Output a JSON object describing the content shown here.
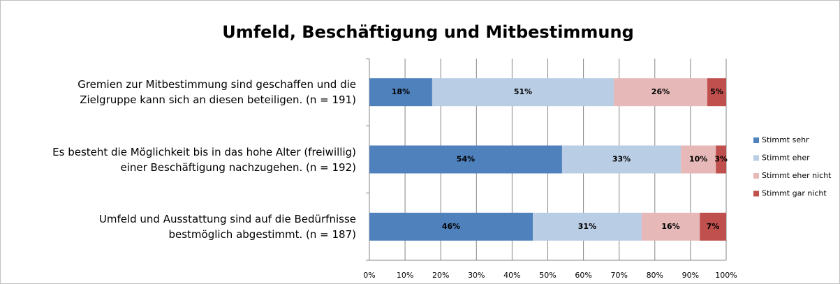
{
  "chart_data": {
    "type": "stacked-bar-horizontal",
    "title": "Umfeld, Beschäftigung und Mitbestimmung",
    "categories": [
      "Gremien zur Mitbestimmung sind geschaffen und die\nZielgruppe kann sich an diesen beteiligen. (n = 191)",
      "Es besteht die Möglichkeit bis in das hohe Alter (freiwillig)\neiner Beschäftigung nachzugehen. (n = 192)",
      "Umfeld und Ausstattung sind auf die Bedürfnisse\nbestmöglich abgestimmt. (n = 187)"
    ],
    "series": [
      {
        "name": "Stimmt sehr",
        "color": "#4f81bd",
        "values": [
          17.6,
          54.0,
          45.8
        ],
        "value_labels": [
          "18%",
          "54%",
          "46%"
        ]
      },
      {
        "name": "Stimmt eher",
        "color": "#b9cde5",
        "values": [
          50.9,
          33.3,
          30.5
        ],
        "value_labels": [
          "51%",
          "33%",
          "31%"
        ]
      },
      {
        "name": "Stimmt eher nicht",
        "color": "#e6b9b8",
        "values": [
          26.2,
          9.8,
          16.3
        ],
        "value_labels": [
          "26%",
          "10%",
          "16%"
        ]
      },
      {
        "name": "Stimmt gar nicht",
        "color": "#c0504d",
        "values": [
          5.3,
          2.9,
          7.4
        ],
        "value_labels": [
          "5%",
          "3%",
          "7%"
        ]
      }
    ],
    "xlim": [
      0,
      100
    ],
    "xticks": [
      {
        "value": 0,
        "label": "0%"
      },
      {
        "value": 10,
        "label": "10%"
      },
      {
        "value": 20,
        "label": "20%"
      },
      {
        "value": 30,
        "label": "30%"
      },
      {
        "value": 40,
        "label": "40%"
      },
      {
        "value": 50,
        "label": "50%"
      },
      {
        "value": 60,
        "label": "60%"
      },
      {
        "value": 70,
        "label": "70%"
      },
      {
        "value": 80,
        "label": "80%"
      },
      {
        "value": 90,
        "label": "90%"
      },
      {
        "value": 100,
        "label": "100%"
      }
    ],
    "grid": true,
    "legend": "right"
  }
}
